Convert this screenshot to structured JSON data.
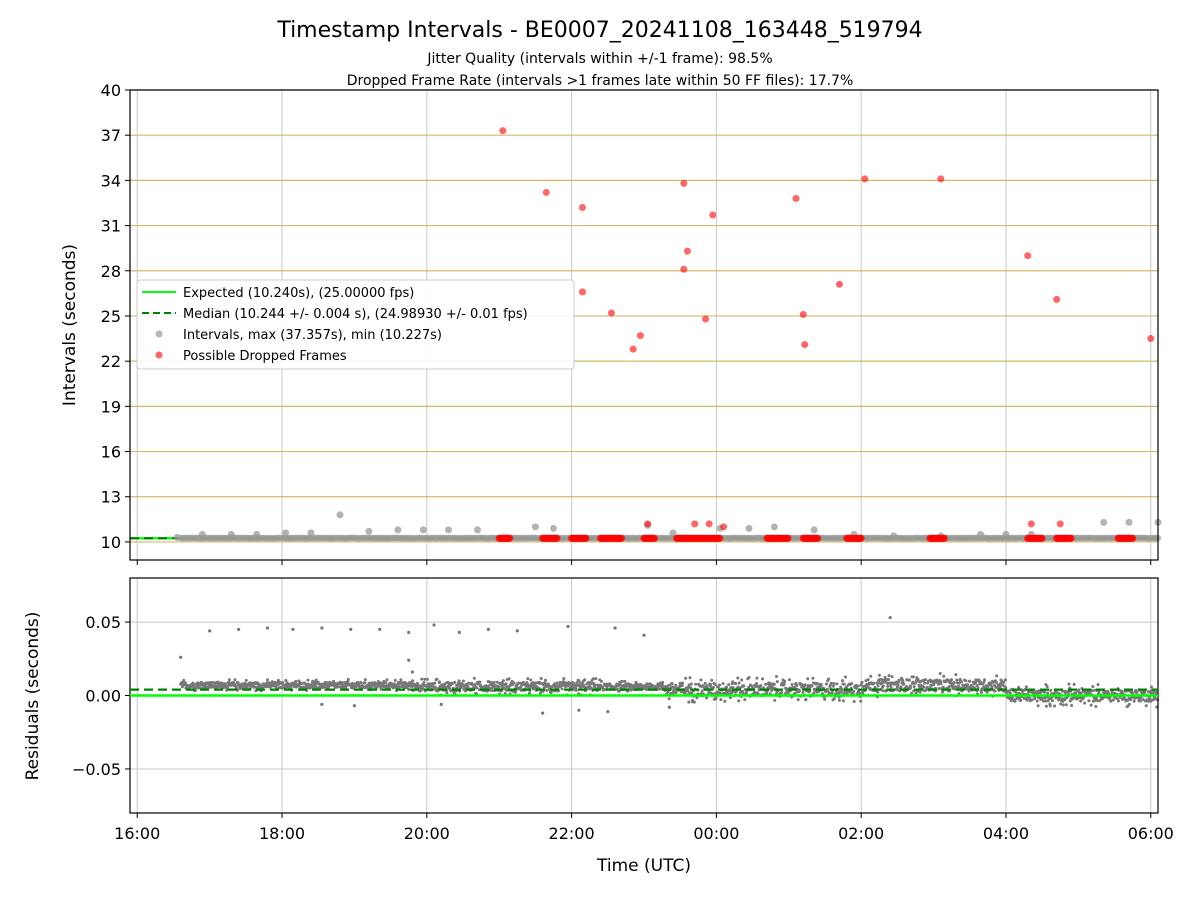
{
  "colors": {
    "expected": "#00ff00",
    "median": "#008000",
    "interval": "#999999",
    "dropped": "#ff0000",
    "residual": "#777777",
    "hgrid_top": "#d4b86a",
    "grid": "#c8c8c8"
  },
  "chart_data": [
    {
      "type": "scatter",
      "title": "Timestamp Intervals - BE0007_20241108_163448_519794",
      "subtitle_lines": [
        "Jitter Quality (intervals within +/-1 frame): 98.5%",
        "Dropped Frame Rate (intervals >1 frames late within 50 FF files): 17.7%"
      ],
      "xlabel": "",
      "ylabel": "Intervals (seconds)",
      "x_unit": "hours since 16:00 UTC",
      "xlim": [
        -0.1,
        14.1
      ],
      "ylim": [
        8.8,
        40
      ],
      "yticks": [
        10,
        13,
        16,
        19,
        22,
        25,
        28,
        31,
        34,
        37,
        40
      ],
      "xticks": [
        0,
        2,
        4,
        6,
        8,
        10,
        12,
        14
      ],
      "grid": true,
      "legend_position": "center-left",
      "legend": [
        "Expected (10.240s), (25.00000 fps)",
        "Median (10.244 +/- 0.004 s), (24.98930 +/- 0.01 fps)",
        "Intervals, max (37.357s), min (10.227s)",
        "Possible Dropped Frames"
      ],
      "series": [
        {
          "kind": "line",
          "style": "solid",
          "y": 10.24
        },
        {
          "kind": "line",
          "style": "dashed",
          "y": 10.244
        },
        {
          "kind": "points",
          "x": [
            0.55,
            0.9,
            1.3,
            1.65,
            2.05,
            2.4,
            2.8,
            3.2,
            3.6,
            3.95,
            4.3,
            4.7,
            5.5,
            5.75,
            7.05,
            7.4,
            8.05,
            8.45,
            8.8,
            9.35,
            9.9,
            10.45,
            11.1,
            11.65,
            12.0,
            12.35,
            13.35,
            13.7,
            14.1
          ],
          "y": [
            10.3,
            10.5,
            10.5,
            10.5,
            10.6,
            10.6,
            11.8,
            10.7,
            10.8,
            10.8,
            10.8,
            10.8,
            11.0,
            10.9,
            11.1,
            10.6,
            10.9,
            10.9,
            11.0,
            10.8,
            10.5,
            10.4,
            10.4,
            10.5,
            10.5,
            10.5,
            11.3,
            11.3,
            11.3
          ]
        },
        {
          "kind": "dropped",
          "x": [
            5.05,
            5.65,
            6.15,
            6.55,
            6.85,
            6.95,
            6.15,
            7.05,
            7.55,
            7.55,
            7.6,
            7.7,
            7.85,
            7.9,
            7.95,
            8.1,
            9.1,
            9.2,
            9.22,
            9.7,
            10.05,
            11.1,
            12.3,
            12.35,
            12.7,
            12.75,
            14.0
          ],
          "y": [
            37.3,
            33.2,
            32.2,
            25.2,
            22.8,
            23.7,
            26.6,
            11.2,
            28.1,
            33.8,
            29.3,
            11.2,
            24.8,
            11.2,
            31.7,
            11.0,
            32.8,
            25.1,
            23.1,
            27.1,
            34.1,
            34.1,
            29.0,
            11.2,
            26.1,
            11.2,
            23.5
          ]
        },
        {
          "kind": "dropped_clusters",
          "ranges": [
            [
              5.0,
              5.15
            ],
            [
              5.6,
              5.8
            ],
            [
              6.0,
              6.2
            ],
            [
              6.4,
              6.7
            ],
            [
              7.0,
              7.15
            ],
            [
              7.45,
              8.05
            ],
            [
              8.7,
              9.0
            ],
            [
              9.2,
              9.4
            ],
            [
              9.8,
              10.0
            ],
            [
              10.95,
              11.15
            ],
            [
              12.3,
              12.5
            ],
            [
              12.7,
              12.9
            ],
            [
              13.55,
              13.75
            ]
          ],
          "y": 10.24
        }
      ]
    },
    {
      "type": "scatter",
      "title": "",
      "xlabel": "Time (UTC)",
      "ylabel": "Residuals (seconds)",
      "x_unit": "hours since 16:00 UTC",
      "xlim": [
        -0.1,
        14.1
      ],
      "ylim": [
        -0.08,
        0.08
      ],
      "yticks": [
        0.05,
        0.0,
        -0.05
      ],
      "ytick_labels": [
        "0.05",
        "0.00",
        "−0.05"
      ],
      "xticks": [
        0,
        2,
        4,
        6,
        8,
        10,
        12,
        14
      ],
      "xtick_labels": [
        "16:00",
        "18:00",
        "20:00",
        "22:00",
        "00:00",
        "02:00",
        "04:00",
        "06:00"
      ],
      "grid": true,
      "series": [
        {
          "kind": "line",
          "style": "solid",
          "y": 0.0
        },
        {
          "kind": "line",
          "style": "dashed",
          "y": 0.004
        },
        {
          "kind": "segments",
          "segments": [
            {
              "x0": 0.6,
              "x1": 3.9,
              "center": 0.007,
              "spread": 0.004
            },
            {
              "x0": 3.9,
              "x1": 6.4,
              "center": 0.006,
              "spread": 0.006
            },
            {
              "x0": 6.4,
              "x1": 7.3,
              "center": 0.006,
              "spread": 0.004
            },
            {
              "x0": 7.3,
              "x1": 10.0,
              "center": 0.004,
              "spread": 0.009
            },
            {
              "x0": 10.0,
              "x1": 12.0,
              "center": 0.007,
              "spread": 0.008
            },
            {
              "x0": 12.0,
              "x1": 14.1,
              "center": 0.0,
              "spread": 0.008
            }
          ]
        },
        {
          "kind": "outliers",
          "x": [
            0.6,
            1.0,
            1.4,
            1.8,
            2.15,
            2.55,
            2.95,
            3.35,
            3.75,
            4.1,
            4.45,
            4.85,
            5.25,
            5.95,
            6.6,
            7.0,
            10.4,
            3.75,
            3.8,
            5.6,
            6.1,
            6.5,
            7.35,
            2.55,
            3.0,
            4.2
          ],
          "y": [
            0.026,
            0.044,
            0.045,
            0.046,
            0.045,
            0.046,
            0.045,
            0.045,
            0.043,
            0.048,
            0.043,
            0.045,
            0.044,
            0.047,
            0.046,
            0.041,
            0.053,
            0.024,
            0.016,
            -0.012,
            -0.01,
            -0.011,
            -0.008,
            -0.006,
            -0.007,
            -0.006
          ]
        }
      ]
    }
  ]
}
